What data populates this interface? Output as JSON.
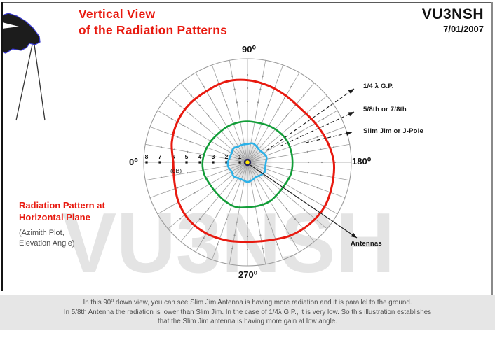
{
  "header": {
    "title_line1": "Vertical View",
    "title_line2": "of the Radiation Patterns",
    "callsign": "VU3NSH",
    "date": "7/01/2007"
  },
  "sidebar": {
    "heading_line1": "Radiation Pattern at",
    "heading_line2": "Horizontal Plane",
    "subheading_line1": "(Azimith Plot,",
    "subheading_line2": "Elevation Angle)"
  },
  "watermark": {
    "text": "VU3NSH"
  },
  "legend": {
    "quarter_wave": "1/4 λ G.P.",
    "five_eighth": "5/8th or 7/8th",
    "slim_jim": "Slim Jim or J-Pole",
    "antennas": "Antennas"
  },
  "chart_data": {
    "type": "line",
    "subtype": "polar-radiation-pattern",
    "title": "Vertical View of the Radiation Patterns",
    "angle_labels": {
      "left": "0⁰",
      "top": "90⁰",
      "right": "180⁰",
      "bottom": "270⁰"
    },
    "radial_axis": {
      "label": "(dB)",
      "unit": "dB",
      "ticks": [
        8,
        7,
        6,
        5,
        4,
        3,
        2,
        1
      ],
      "direction": "increasing outward, labeled on left horizontal axis"
    },
    "grid": {
      "spokes_deg_step": 10,
      "outer_circle": true
    },
    "angles_deg": [
      0,
      15,
      30,
      45,
      60,
      75,
      90,
      105,
      120,
      135,
      150,
      165,
      180,
      195,
      210,
      225,
      240,
      255,
      270,
      285,
      300,
      315,
      330,
      345
    ],
    "series": [
      {
        "name": "Slim Jim or J-Pole",
        "color": "#e8190f",
        "values_db": [
          6.0,
          6.3,
          6.5,
          6.6,
          6.6,
          6.7,
          6.6,
          6.4,
          6.2,
          6.1,
          6.3,
          6.6,
          6.9,
          7.0,
          7.1,
          7.0,
          6.8,
          6.5,
          6.4,
          6.5,
          6.6,
          6.6,
          6.4,
          6.1
        ]
      },
      {
        "name": "5/8th or 7/8th",
        "color": "#129d38",
        "values_db": [
          3.8,
          3.7,
          3.6,
          3.5,
          3.5,
          3.5,
          3.5,
          3.5,
          3.6,
          3.7,
          3.8,
          3.8,
          3.8,
          3.8,
          3.7,
          3.7,
          3.8,
          3.8,
          3.8,
          3.9,
          3.8,
          3.7,
          3.7,
          3.8
        ]
      },
      {
        "name": "1/4 λ G.P.",
        "color": "#2cb1e8",
        "values_db": [
          1.9,
          1.8,
          1.8,
          1.9,
          1.8,
          1.8,
          1.8,
          1.9,
          1.8,
          1.7,
          1.8,
          1.9,
          1.8,
          1.8,
          1.9,
          1.8,
          1.7,
          1.8,
          1.9,
          1.8,
          1.8,
          1.9,
          1.8,
          1.9
        ]
      }
    ],
    "center_marker": {
      "meaning": "Antennas (top view)",
      "fill": "#ffe606",
      "ring": "#26265e"
    },
    "legend_position": "right, connected by dashed arrows to each curve"
  },
  "caption": {
    "line1": "In this 90⁰ down view, you can see Slim Jim Antenna is having more radiation and it is parallel to the ground.",
    "line2": "In 5/8th Antenna the radiation is lower than Slim Jim.  In the case of 1/4λ G.P., it is very low.  So this illustration establishes",
    "line3": "that the Slim Jim antenna is having more gain at low angle."
  },
  "colors": {
    "accent_red": "#e8190f",
    "green_curve": "#129d38",
    "blue_curve": "#2cb1e8",
    "grid_gray": "#9b9b9b",
    "watermark_gray": "#e4e4e4",
    "caption_bg": "#e6e6e6"
  }
}
